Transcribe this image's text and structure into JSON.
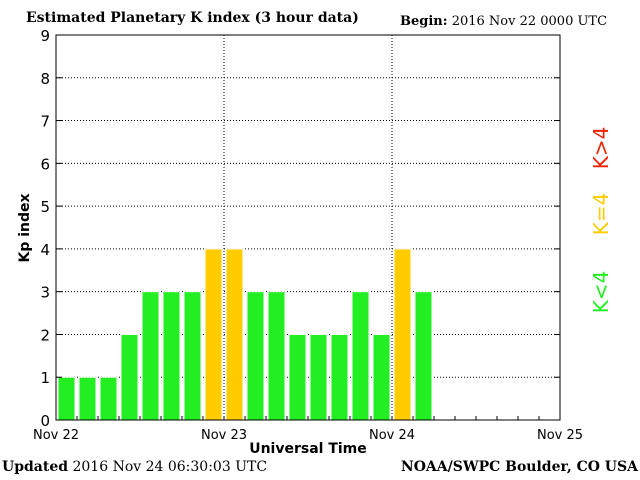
{
  "header": {
    "title": "Estimated Planetary K index (3 hour data)",
    "begin_label": "Begin:",
    "begin_value": "2016 Nov 22 0000 UTC"
  },
  "footer": {
    "updated_label": "Updated",
    "updated_value": "2016 Nov 24 06:30:03 UTC",
    "credit": "NOAA/SWPC Boulder, CO USA"
  },
  "legend": {
    "low": "K<4",
    "mid": "K=4",
    "high": "K>4"
  },
  "colors": {
    "low": "#22ee22",
    "mid": "#ffcc00",
    "high": "#ee2200",
    "grid": "#000000",
    "bar_border": "#ffffff"
  },
  "chart_data": {
    "type": "bar",
    "title": "Estimated Planetary K index (3 hour data)",
    "xlabel": "Universal Time",
    "ylabel": "Kp index",
    "ylim": [
      0,
      9
    ],
    "y_ticks": [
      "0",
      "1",
      "2",
      "3",
      "4",
      "5",
      "6",
      "7",
      "8",
      "9"
    ],
    "x_ticks": [
      "Nov 22",
      "Nov 23",
      "Nov 24",
      "Nov 25"
    ],
    "slots_per_day": 8,
    "grid": "dotted",
    "values": [
      1,
      1,
      1,
      2,
      3,
      3,
      3,
      4,
      4,
      3,
      3,
      2,
      2,
      2,
      3,
      2,
      4,
      3
    ]
  }
}
